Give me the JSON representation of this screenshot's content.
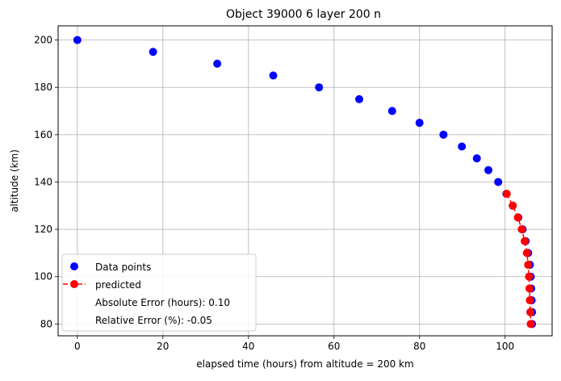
{
  "chart_data": {
    "type": "scatter",
    "title": "Object 39000 6 layer 200 n",
    "xlabel": "elapsed time (hours) from altitude = 200 km",
    "ylabel": "altitude (km)",
    "xlim": [
      -4.5,
      111
    ],
    "ylim": [
      75,
      206
    ],
    "xticks": [
      0,
      20,
      40,
      60,
      80,
      100
    ],
    "yticks": [
      80,
      100,
      120,
      140,
      160,
      180,
      200
    ],
    "grid": true,
    "legend_position": "lower left",
    "series": [
      {
        "name": "Data points",
        "kind": "scatter",
        "color": "#0000ff",
        "x": [
          0,
          17.7,
          32.7,
          45.8,
          56.5,
          65.9,
          73.6,
          80.0,
          85.6,
          89.9,
          93.4,
          96.1,
          98.4,
          100.3,
          101.8,
          103.1,
          104.1,
          104.8,
          105.4,
          105.8,
          106.0,
          106.1,
          106.2,
          106.3,
          106.3
        ],
        "y": [
          200,
          195,
          190,
          185,
          180,
          175,
          170,
          165,
          160,
          155,
          150,
          145,
          140,
          135,
          130,
          125,
          120,
          115,
          110,
          105,
          100,
          95,
          90,
          85,
          80
        ]
      },
      {
        "name": "predicted",
        "kind": "line-marker",
        "color": "#ff0000",
        "x": [
          100.4,
          101.8,
          103.0,
          103.9,
          104.6,
          105.1,
          105.4,
          105.6,
          105.7,
          105.8,
          105.9,
          106.0
        ],
        "y": [
          135,
          130,
          125,
          120,
          115,
          110,
          105,
          100,
          95,
          90,
          85,
          80
        ]
      }
    ],
    "legend_extra": [
      "Absolute Error (hours): 0.10",
      "Relative Error (%): -0.05"
    ]
  }
}
